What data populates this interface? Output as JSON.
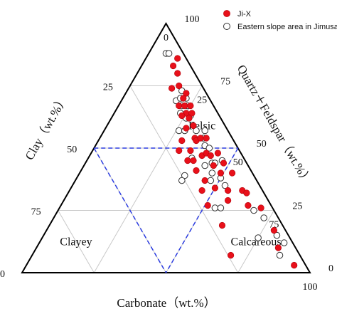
{
  "chart_data": {
    "type": "scatter",
    "subtype": "ternary",
    "axes": {
      "bottom": {
        "label": "Carbonate（wt.%）",
        "ticks": [
          {
            "value": 0,
            "label": "0"
          },
          {
            "value": 25,
            "label": "25"
          },
          {
            "value": 50,
            "label": "50"
          },
          {
            "value": 75,
            "label": "75"
          },
          {
            "value": 100,
            "label": "100"
          }
        ]
      },
      "left": {
        "label": "Clay（wt.%）",
        "ticks": [
          {
            "value": 25,
            "label": "25"
          },
          {
            "value": 50,
            "label": "50"
          },
          {
            "value": 75,
            "label": "75"
          },
          {
            "value": 100,
            "label": "100"
          }
        ]
      },
      "right": {
        "label": "Quartz＋Feldspar（wt.%）",
        "ticks": [
          {
            "value": 0,
            "label": "0"
          },
          {
            "value": 25,
            "label": "25"
          },
          {
            "value": 50,
            "label": "50"
          },
          {
            "value": 75,
            "label": "75"
          },
          {
            "value": 100,
            "label": "100"
          }
        ]
      }
    },
    "regions": [
      {
        "label": "Felsic",
        "carb": 33,
        "clay": 8,
        "qf": 59
      },
      {
        "label": "Clayey",
        "carb": 12.5,
        "clay": 75,
        "qf": 12.5
      },
      {
        "label": "Calcareous",
        "carb": 75,
        "clay": 12.5,
        "qf": 12.5
      }
    ],
    "boundaries_pct": 50,
    "grid_step": 25,
    "legend": {
      "placement": "top-right"
    },
    "series": [
      {
        "name": "Ji-X",
        "marker": "filled-circle",
        "color": "#e8101a",
        "points": [
          {
            "carb": 11,
            "clay": 3
          },
          {
            "carb": 11,
            "clay": 6
          },
          {
            "carb": 14,
            "clay": 6
          },
          {
            "carb": 15,
            "clay": 11
          },
          {
            "carb": 17,
            "clay": 8
          },
          {
            "carb": 21,
            "clay": 7
          },
          {
            "carb": 21,
            "clay": 9
          },
          {
            "carb": 21,
            "clay": 12
          },
          {
            "carb": 23,
            "clay": 10
          },
          {
            "carb": 25,
            "clay": 8
          },
          {
            "carb": 25,
            "clay": 11
          },
          {
            "carb": 24,
            "clay": 13
          },
          {
            "carb": 27,
            "clay": 9
          },
          {
            "carb": 27,
            "clay": 11
          },
          {
            "carb": 28,
            "clay": 14
          },
          {
            "carb": 30,
            "clay": 11
          },
          {
            "carb": 29,
            "clay": 18
          },
          {
            "carb": 30,
            "clay": 21
          },
          {
            "carb": 33,
            "clay": 13
          },
          {
            "carb": 34,
            "clay": 13
          },
          {
            "carb": 35,
            "clay": 11
          },
          {
            "carb": 37,
            "clay": 9
          },
          {
            "carb": 34,
            "clay": 17
          },
          {
            "carb": 35,
            "clay": 20
          },
          {
            "carb": 37,
            "clay": 18
          },
          {
            "carb": 39,
            "clay": 14
          },
          {
            "carb": 40,
            "clay": 12
          },
          {
            "carb": 40,
            "clay": 19
          },
          {
            "carb": 42,
            "clay": 11
          },
          {
            "carb": 44,
            "clay": 8
          },
          {
            "carb": 45,
            "clay": 12
          },
          {
            "carb": 45,
            "clay": 18
          },
          {
            "carb": 46,
            "clay": 21
          },
          {
            "carb": 48,
            "clay": 8
          },
          {
            "carb": 49,
            "clay": 11
          },
          {
            "carb": 50,
            "clay": 16
          },
          {
            "carb": 51,
            "clay": 22
          },
          {
            "carb": 53,
            "clay": 7
          },
          {
            "carb": 55,
            "clay": 12
          },
          {
            "carb": 57,
            "clay": 14
          },
          {
            "carb": 60,
            "clay": 7
          },
          {
            "carb": 60,
            "clay": 21
          },
          {
            "carb": 62,
            "clay": 6
          },
          {
            "carb": 65,
            "clay": 8
          },
          {
            "carb": 70,
            "clay": 4
          },
          {
            "carb": 69,
            "clay": 24
          },
          {
            "carb": 79,
            "clay": 4
          },
          {
            "carb": 84,
            "clay": 6
          },
          {
            "carb": 93,
            "clay": 4
          }
        ]
      },
      {
        "name": "Eastern slope area in Jimusar",
        "marker": "open-circle",
        "color": "#333333",
        "points": [
          {
            "carb": 6,
            "clay": 6
          },
          {
            "carb": 7,
            "clay": 5
          },
          {
            "carb": 19,
            "clay": 8
          },
          {
            "carb": 19,
            "clay": 12
          },
          {
            "carb": 20,
            "clay": 10
          },
          {
            "carb": 22,
            "clay": 8
          },
          {
            "carb": 22,
            "clay": 11
          },
          {
            "carb": 23,
            "clay": 13
          },
          {
            "carb": 24,
            "clay": 9
          },
          {
            "carb": 26,
            "clay": 12
          },
          {
            "carb": 26,
            "clay": 17
          },
          {
            "carb": 27,
            "clay": 10
          },
          {
            "carb": 28,
            "clay": 15
          },
          {
            "carb": 32,
            "clay": 11
          },
          {
            "carb": 35,
            "clay": 8
          },
          {
            "carb": 36,
            "clay": 10
          },
          {
            "carb": 36,
            "clay": 18
          },
          {
            "carb": 37,
            "clay": 24
          },
          {
            "carb": 37,
            "clay": 26
          },
          {
            "carb": 38,
            "clay": 11
          },
          {
            "carb": 40,
            "clay": 10
          },
          {
            "carb": 42,
            "clay": 15
          },
          {
            "carb": 44,
            "clay": 12
          },
          {
            "carb": 45,
            "clay": 11
          },
          {
            "carb": 46,
            "clay": 14
          },
          {
            "carb": 47,
            "clay": 8
          },
          {
            "carb": 47,
            "clay": 16
          },
          {
            "carb": 50,
            "clay": 12
          },
          {
            "carb": 53,
            "clay": 12
          },
          {
            "carb": 54,
            "clay": 20
          },
          {
            "carb": 56,
            "clay": 18
          },
          {
            "carb": 68,
            "clay": 7
          },
          {
            "carb": 73,
            "clay": 5
          },
          {
            "carb": 75,
            "clay": 11
          },
          {
            "carb": 81,
            "clay": 4
          },
          {
            "carb": 85,
            "clay": 3
          },
          {
            "carb": 86,
            "clay": 7
          }
        ]
      }
    ]
  }
}
